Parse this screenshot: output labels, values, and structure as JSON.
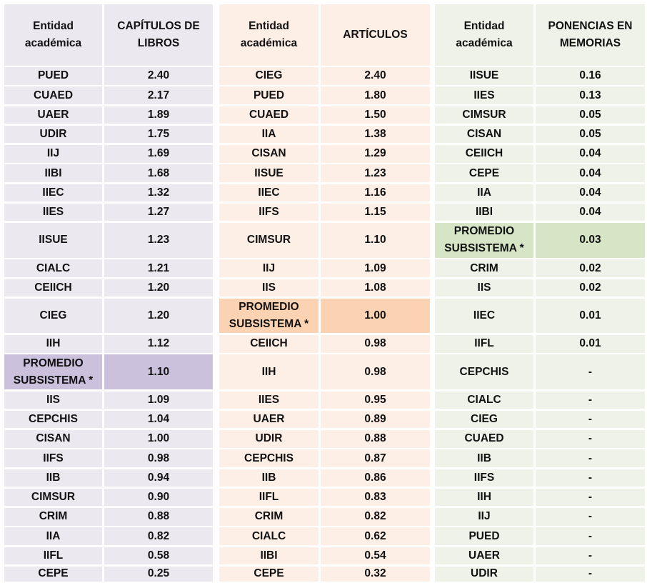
{
  "tables": [
    {
      "theme": "p",
      "header": {
        "entity": "Entidad académica",
        "metric": "CAPÍTULOS DE LIBROS"
      },
      "rows": [
        {
          "entity": "PUED",
          "value": "2.40"
        },
        {
          "entity": "CUAED",
          "value": "2.17"
        },
        {
          "entity": "UAER",
          "value": "1.89"
        },
        {
          "entity": "UDIR",
          "value": "1.75"
        },
        {
          "entity": "IIJ",
          "value": "1.69"
        },
        {
          "entity": "IIBI",
          "value": "1.68"
        },
        {
          "entity": "IIEC",
          "value": "1.32"
        },
        {
          "entity": "IIES",
          "value": "1.27"
        },
        {
          "entity": "IISUE",
          "value": "1.23"
        },
        {
          "entity": "CIALC",
          "value": "1.21"
        },
        {
          "entity": "CEIICH",
          "value": "1.20"
        },
        {
          "entity": "CIEG",
          "value": "1.20"
        },
        {
          "entity": "IIH",
          "value": "1.12"
        },
        {
          "entity": "PROMEDIO SUBSISTEMA *",
          "value": "1.10",
          "highlight": true
        },
        {
          "entity": "IIS",
          "value": "1.09"
        },
        {
          "entity": "CEPCHIS",
          "value": "1.04"
        },
        {
          "entity": "CISAN",
          "value": "1.00"
        },
        {
          "entity": "IIFS",
          "value": "0.98"
        },
        {
          "entity": "IIB",
          "value": "0.94"
        },
        {
          "entity": "CIMSUR",
          "value": "0.90"
        },
        {
          "entity": "CRIM",
          "value": "0.88"
        },
        {
          "entity": "IIA",
          "value": "0.82"
        },
        {
          "entity": "IIFL",
          "value": "0.58"
        },
        {
          "entity": "CEPE",
          "value": "0.25"
        }
      ]
    },
    {
      "theme": "o",
      "header": {
        "entity": "Entidad académica",
        "metric": "ARTÍCULOS"
      },
      "rows": [
        {
          "entity": "CIEG",
          "value": "2.40"
        },
        {
          "entity": "PUED",
          "value": "1.80"
        },
        {
          "entity": "CUAED",
          "value": "1.50"
        },
        {
          "entity": "IIA",
          "value": "1.38"
        },
        {
          "entity": "CISAN",
          "value": "1.29"
        },
        {
          "entity": "IISUE",
          "value": "1.23"
        },
        {
          "entity": "IIEC",
          "value": "1.16"
        },
        {
          "entity": "IIFS",
          "value": "1.15"
        },
        {
          "entity": "CIMSUR",
          "value": "1.10"
        },
        {
          "entity": "IIJ",
          "value": "1.09"
        },
        {
          "entity": "IIS",
          "value": "1.08"
        },
        {
          "entity": "PROMEDIO SUBSISTEMA *",
          "value": "1.00",
          "highlight": true
        },
        {
          "entity": "CEIICH",
          "value": "0.98"
        },
        {
          "entity": "IIH",
          "value": "0.98"
        },
        {
          "entity": "IIES",
          "value": "0.95"
        },
        {
          "entity": "UAER",
          "value": "0.89"
        },
        {
          "entity": "UDIR",
          "value": "0.88"
        },
        {
          "entity": "CEPCHIS",
          "value": "0.87"
        },
        {
          "entity": "IIB",
          "value": "0.86"
        },
        {
          "entity": "IIFL",
          "value": "0.83"
        },
        {
          "entity": "CRIM",
          "value": "0.82"
        },
        {
          "entity": "CIALC",
          "value": "0.62"
        },
        {
          "entity": "IIBI",
          "value": "0.54"
        },
        {
          "entity": "CEPE",
          "value": "0.32"
        }
      ]
    },
    {
      "theme": "g",
      "header": {
        "entity": "Entidad académica",
        "metric": "PONENCIAS EN MEMORIAS"
      },
      "rows": [
        {
          "entity": "IISUE",
          "value": "0.16"
        },
        {
          "entity": "IIES",
          "value": "0.13"
        },
        {
          "entity": "CIMSUR",
          "value": "0.05"
        },
        {
          "entity": "CISAN",
          "value": "0.05"
        },
        {
          "entity": "CEIICH",
          "value": "0.04"
        },
        {
          "entity": "CEPE",
          "value": "0.04"
        },
        {
          "entity": "IIA",
          "value": "0.04"
        },
        {
          "entity": "IIBI",
          "value": "0.04"
        },
        {
          "entity": "PROMEDIO SUBSISTEMA *",
          "value": "0.03",
          "highlight": true
        },
        {
          "entity": "CRIM",
          "value": "0.02"
        },
        {
          "entity": "IIS",
          "value": "0.02"
        },
        {
          "entity": "IIEC",
          "value": "0.01"
        },
        {
          "entity": "IIFL",
          "value": "0.01"
        },
        {
          "entity": "CEPCHIS",
          "value": "-"
        },
        {
          "entity": "CIALC",
          "value": "-"
        },
        {
          "entity": "CIEG",
          "value": "-"
        },
        {
          "entity": "CUAED",
          "value": "-"
        },
        {
          "entity": "IIB",
          "value": "-"
        },
        {
          "entity": "IIFS",
          "value": "-"
        },
        {
          "entity": "IIH",
          "value": "-"
        },
        {
          "entity": "IIJ",
          "value": "-"
        },
        {
          "entity": "PUED",
          "value": "-"
        },
        {
          "entity": "UAER",
          "value": "-"
        },
        {
          "entity": "UDIR",
          "value": "-"
        }
      ]
    }
  ]
}
